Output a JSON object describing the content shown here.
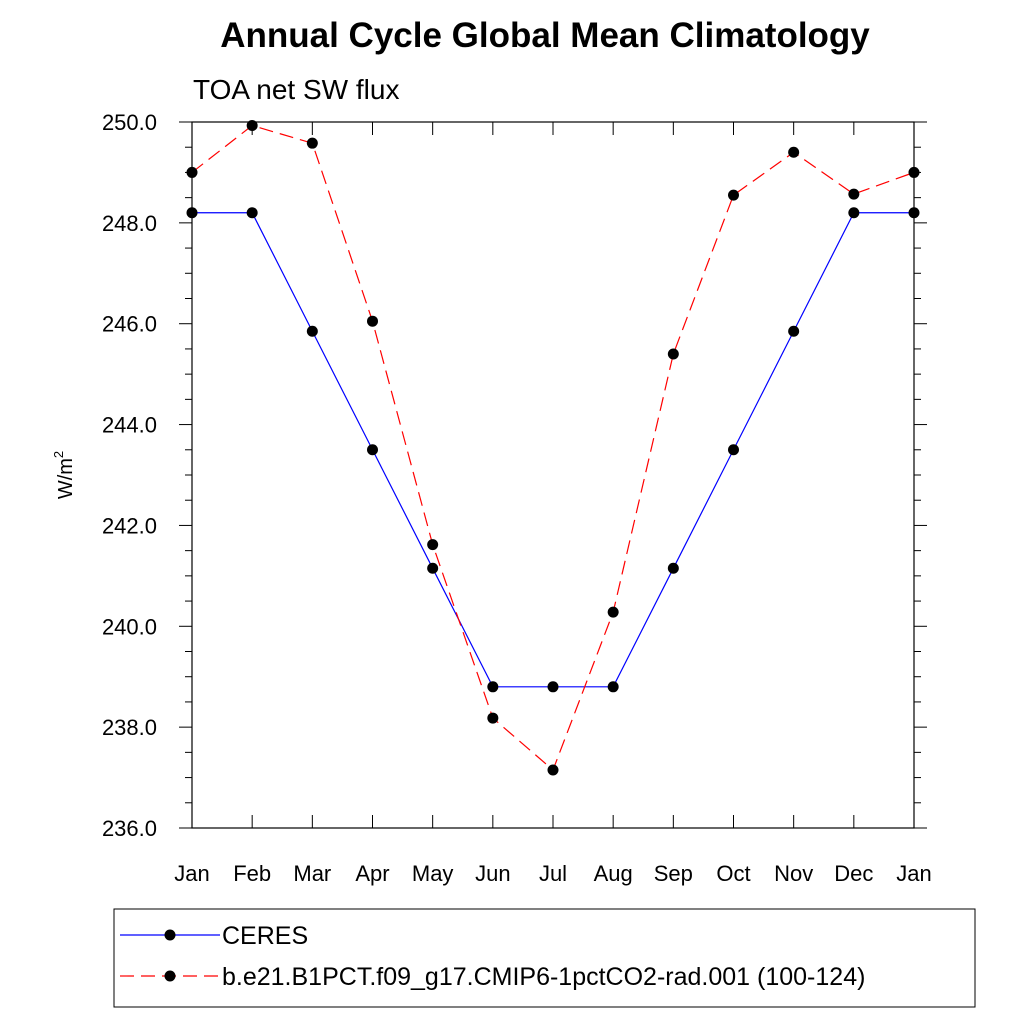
{
  "chart_data": {
    "type": "line",
    "title": "Annual Cycle Global Mean Climatology",
    "subtitle": "TOA net SW flux",
    "xlabel": "",
    "ylabel_base": "W/m",
    "ylabel_sup": "2",
    "categories": [
      "Jan",
      "Feb",
      "Mar",
      "Apr",
      "May",
      "Jun",
      "Jul",
      "Aug",
      "Sep",
      "Oct",
      "Nov",
      "Dec",
      "Jan"
    ],
    "ylim": [
      236.0,
      250.0
    ],
    "yticks": [
      236.0,
      238.0,
      240.0,
      242.0,
      244.0,
      246.0,
      248.0,
      250.0
    ],
    "yticks_labels": [
      "236.0",
      "238.0",
      "240.0",
      "242.0",
      "244.0",
      "246.0",
      "248.0",
      "250.0"
    ],
    "y_minor_step": 0.5,
    "grid": false,
    "legend_position": "bottom",
    "series": [
      {
        "name": "CERES",
        "color": "#0000ff",
        "dash": "solid",
        "values": [
          248.2,
          248.2,
          245.85,
          243.5,
          241.15,
          238.8,
          238.8,
          238.8,
          241.15,
          243.5,
          245.85,
          248.2,
          248.2
        ]
      },
      {
        "name": "b.e21.B1PCT.f09_g17.CMIP6-1pctCO2-rad.001 (100-124)",
        "color": "#ff0000",
        "dash": "dashed",
        "values": [
          249.0,
          249.93,
          249.58,
          246.05,
          241.62,
          238.18,
          237.15,
          240.28,
          245.4,
          248.55,
          249.4,
          248.57,
          249.0
        ]
      }
    ],
    "marker_color": "#000000"
  }
}
